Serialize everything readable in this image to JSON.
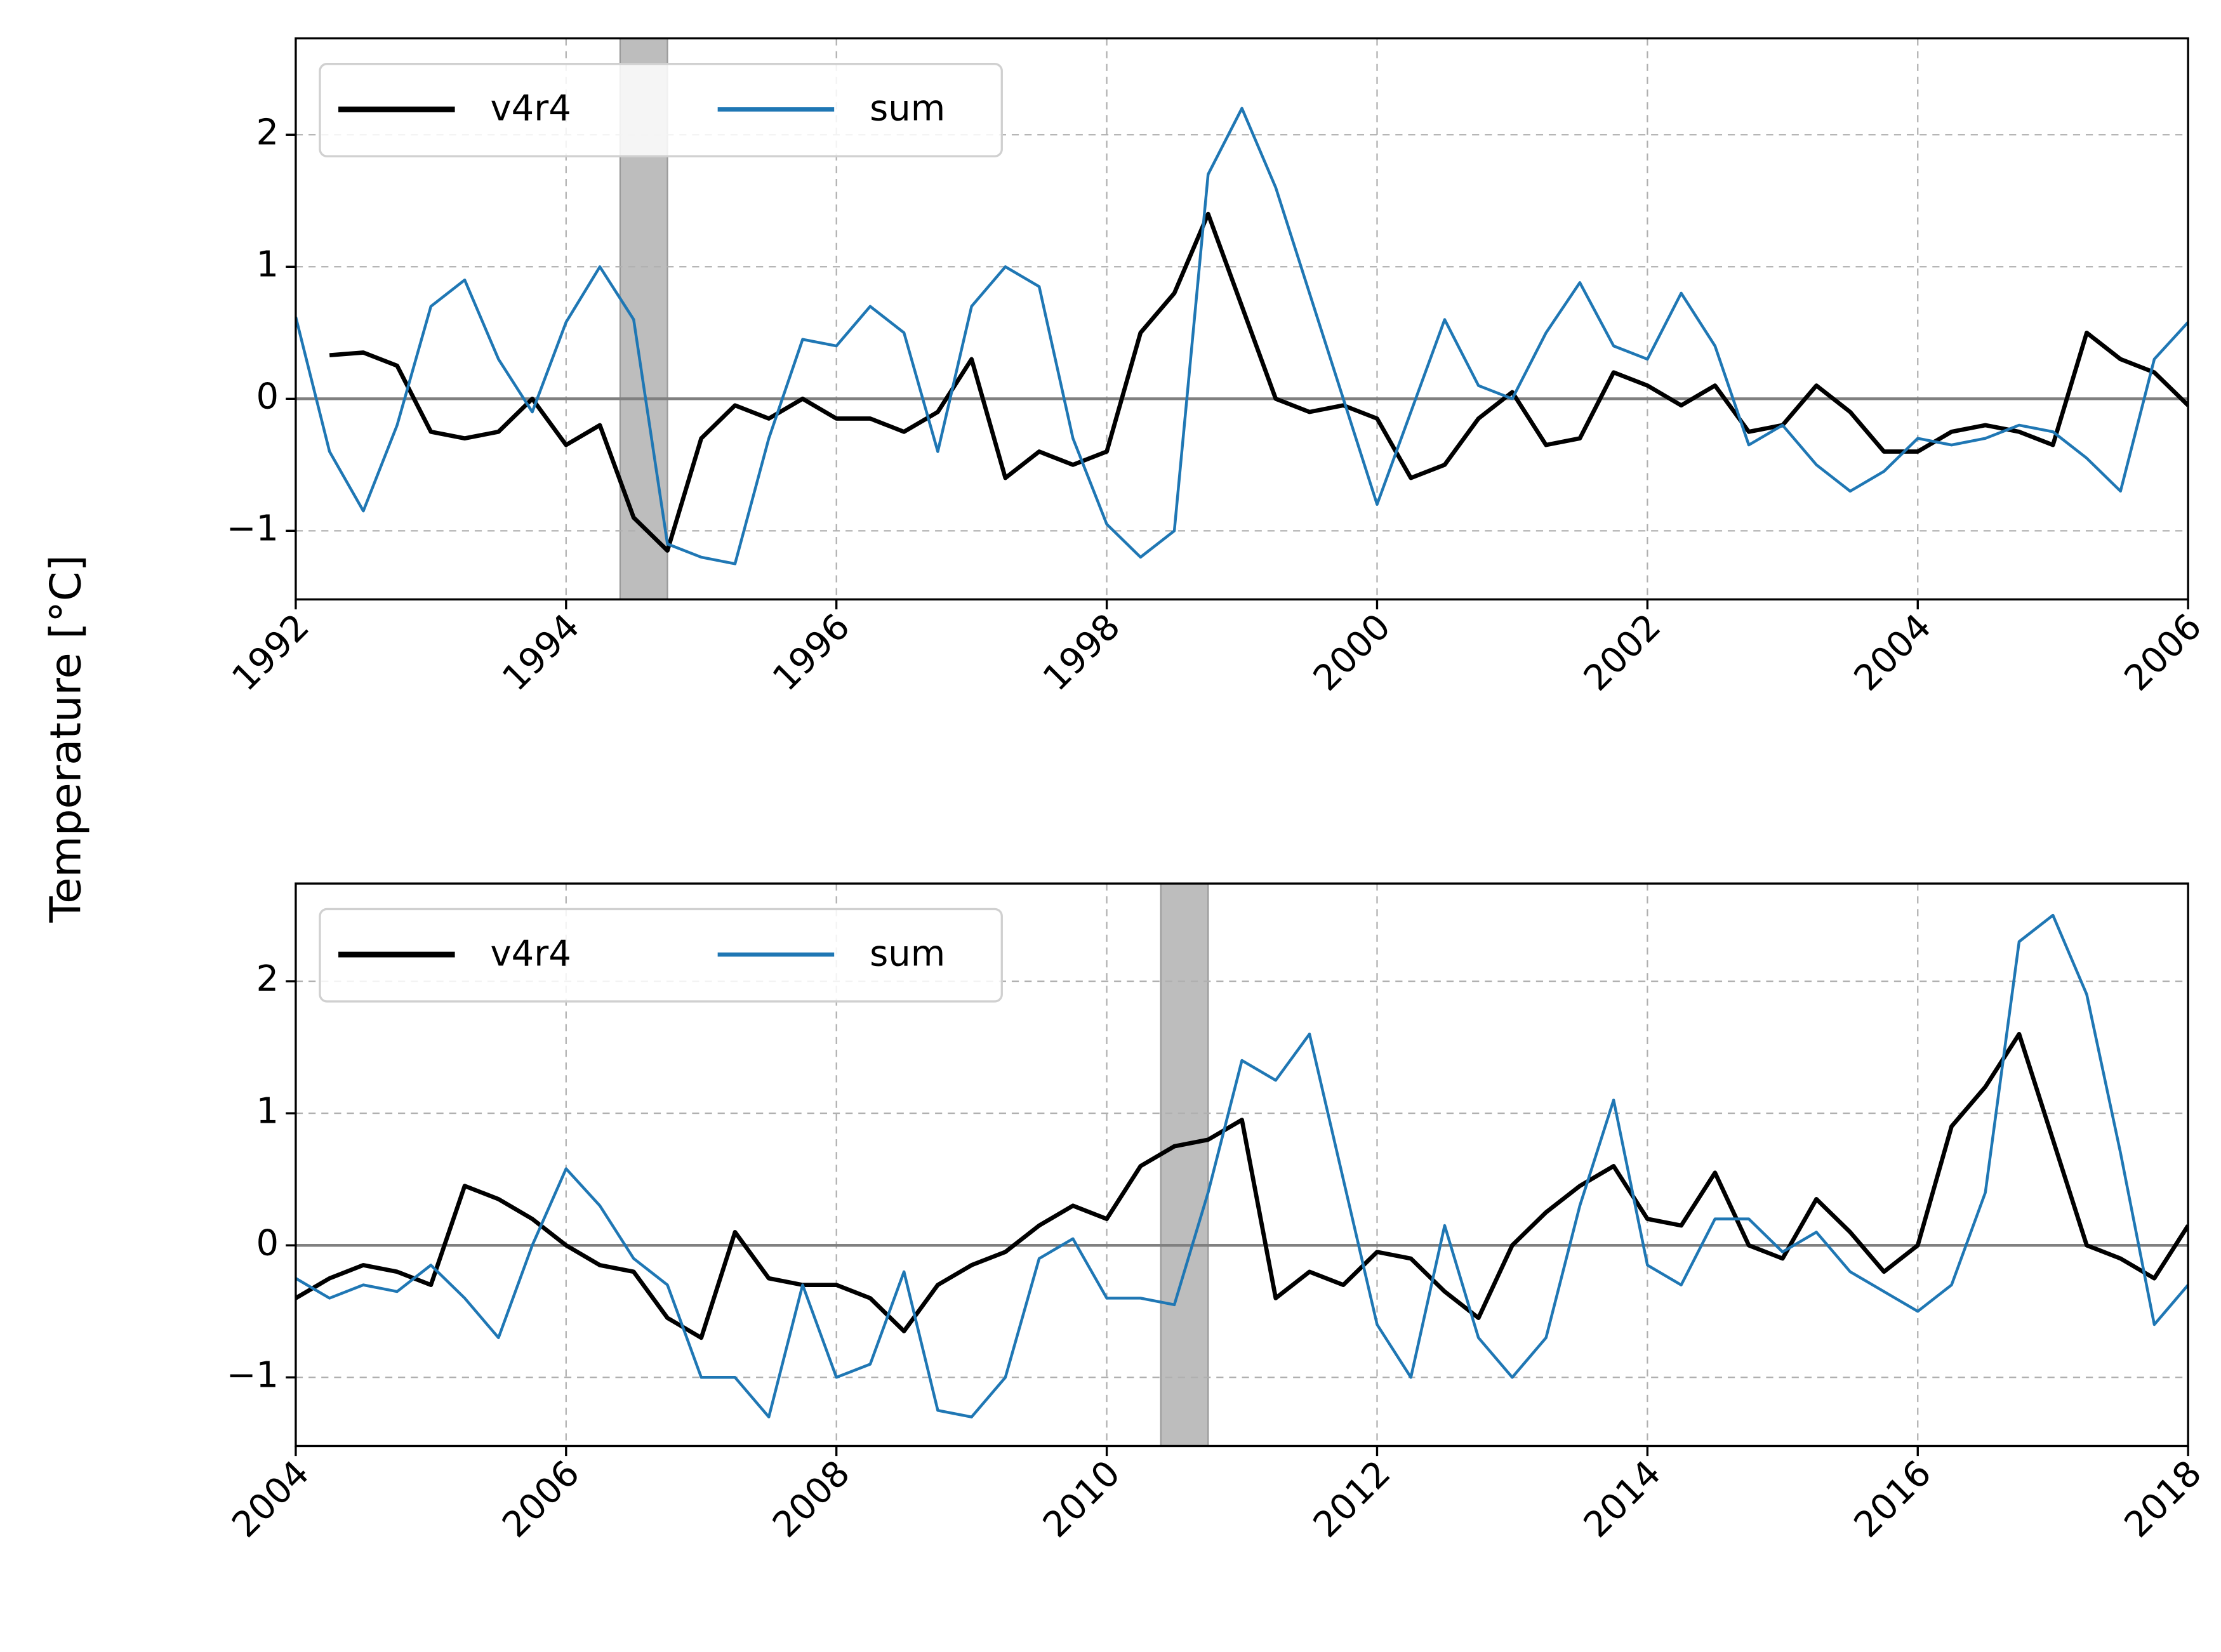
{
  "chart_data": [
    {
      "type": "line",
      "ylabel": "Temperature [°C]",
      "x": [
        1992,
        1992.25,
        1992.5,
        1992.75,
        1993,
        1993.25,
        1993.5,
        1993.75,
        1994,
        1994.25,
        1994.5,
        1994.75,
        1995,
        1995.25,
        1995.5,
        1995.75,
        1996,
        1996.25,
        1996.5,
        1996.75,
        1997,
        1997.25,
        1997.5,
        1997.75,
        1998,
        1998.25,
        1998.5,
        1998.75,
        1999,
        1999.25,
        1999.5,
        1999.75,
        2000,
        2000.25,
        2000.5,
        2000.75,
        2001,
        2001.25,
        2001.5,
        2001.75,
        2002,
        2002.25,
        2002.5,
        2002.75,
        2003,
        2003.25,
        2003.5,
        2003.75,
        2004,
        2004.25,
        2004.5,
        2004.75,
        2005,
        2005.25,
        2005.5,
        2005.75,
        2006
      ],
      "series": [
        {
          "name": "v4r4",
          "color": "#000000",
          "width": 3,
          "values": [
            null,
            0.33,
            0.35,
            0.25,
            -0.25,
            -0.3,
            -0.25,
            0.0,
            -0.35,
            -0.2,
            -0.9,
            -1.15,
            -0.3,
            -0.05,
            -0.15,
            0.0,
            -0.15,
            -0.15,
            -0.25,
            -0.1,
            0.3,
            -0.6,
            -0.4,
            -0.5,
            -0.4,
            0.5,
            0.8,
            1.4,
            0.7,
            0.0,
            -0.1,
            -0.05,
            -0.15,
            -0.6,
            -0.5,
            -0.15,
            0.05,
            -0.35,
            -0.3,
            0.2,
            0.1,
            -0.05,
            0.1,
            -0.25,
            -0.2,
            0.1,
            -0.1,
            -0.4,
            -0.4,
            -0.25,
            -0.2,
            -0.25,
            -0.35,
            0.5,
            0.3,
            0.2,
            -0.05
          ]
        },
        {
          "name": "sum",
          "color": "#1f77b4",
          "width": 2,
          "values": [
            0.62,
            -0.4,
            -0.85,
            -0.2,
            0.7,
            0.9,
            0.3,
            -0.1,
            0.58,
            1.0,
            0.6,
            -1.1,
            -1.2,
            -1.25,
            -0.3,
            0.45,
            0.4,
            0.7,
            0.5,
            -0.4,
            0.7,
            1.0,
            0.85,
            -0.3,
            -0.95,
            -1.2,
            -1.0,
            1.7,
            2.2,
            1.6,
            0.8,
            0.0,
            -0.8,
            -0.1,
            0.6,
            0.1,
            0.0,
            0.5,
            0.88,
            0.4,
            0.3,
            0.8,
            0.4,
            -0.35,
            -0.2,
            -0.5,
            -0.7,
            -0.55,
            -0.3,
            -0.35,
            -0.3,
            -0.2,
            -0.25,
            -0.45,
            -0.7,
            0.3,
            0.58
          ]
        }
      ],
      "spans": [
        [
          1994.4,
          1994.75
        ]
      ],
      "hline": 0,
      "xlim": [
        1992,
        2006
      ],
      "xticks": [
        1992,
        1994,
        1996,
        1998,
        2000,
        2002,
        2004,
        2006
      ],
      "ylim": [
        -1.52,
        2.73
      ],
      "yticks": [
        {
          "value": -1,
          "label": "−1"
        },
        0,
        1,
        2
      ],
      "grid": true,
      "legend": "upper left"
    },
    {
      "type": "line",
      "x": [
        2004,
        2004.25,
        2004.5,
        2004.75,
        2005,
        2005.25,
        2005.5,
        2005.75,
        2006,
        2006.25,
        2006.5,
        2006.75,
        2007,
        2007.25,
        2007.5,
        2007.75,
        2008,
        2008.25,
        2008.5,
        2008.75,
        2009,
        2009.25,
        2009.5,
        2009.75,
        2010,
        2010.25,
        2010.5,
        2010.75,
        2011,
        2011.25,
        2011.5,
        2011.75,
        2012,
        2012.25,
        2012.5,
        2012.75,
        2013,
        2013.25,
        2013.5,
        2013.75,
        2014,
        2014.25,
        2014.5,
        2014.75,
        2015,
        2015.25,
        2015.5,
        2015.75,
        2016,
        2016.25,
        2016.5,
        2016.75,
        2017,
        2017.25,
        2017.5,
        2017.75,
        2018
      ],
      "series": [
        {
          "name": "v4r4",
          "color": "#000000",
          "width": 3,
          "values": [
            -0.4,
            -0.25,
            -0.15,
            -0.2,
            -0.3,
            0.45,
            0.35,
            0.2,
            0.0,
            -0.15,
            -0.2,
            -0.55,
            -0.7,
            0.1,
            -0.25,
            -0.3,
            -0.3,
            -0.4,
            -0.65,
            -0.3,
            -0.15,
            -0.05,
            0.15,
            0.3,
            0.2,
            0.6,
            0.75,
            0.8,
            0.95,
            -0.4,
            -0.2,
            -0.3,
            -0.05,
            -0.1,
            -0.35,
            -0.55,
            0.0,
            0.25,
            0.45,
            0.6,
            0.2,
            0.15,
            0.55,
            0.0,
            -0.1,
            0.35,
            0.1,
            -0.2,
            0.0,
            0.9,
            1.2,
            1.6,
            0.8,
            0.0,
            -0.1,
            -0.25,
            0.15
          ]
        },
        {
          "name": "sum",
          "color": "#1f77b4",
          "width": 2,
          "values": [
            -0.25,
            -0.4,
            -0.3,
            -0.35,
            -0.15,
            -0.4,
            -0.7,
            0.0,
            0.58,
            0.3,
            -0.1,
            -0.3,
            -1.0,
            -1.0,
            -1.3,
            -0.3,
            -1.0,
            -0.9,
            -0.2,
            -1.25,
            -1.3,
            -1.0,
            -0.1,
            0.05,
            -0.4,
            -0.4,
            -0.45,
            0.4,
            1.4,
            1.25,
            1.6,
            0.5,
            -0.6,
            -1.0,
            0.15,
            -0.7,
            -1.0,
            -0.7,
            0.3,
            1.1,
            -0.15,
            -0.3,
            0.2,
            0.2,
            -0.05,
            0.1,
            -0.2,
            -0.35,
            -0.5,
            -0.3,
            0.4,
            2.3,
            2.5,
            1.9,
            0.7,
            -0.6,
            -0.3
          ]
        }
      ],
      "spans": [
        [
          2010.4,
          2010.75
        ]
      ],
      "hline": 0,
      "xlim": [
        2004,
        2018
      ],
      "xticks": [
        2004,
        2006,
        2008,
        2010,
        2012,
        2014,
        2016,
        2018
      ],
      "ylim": [
        -1.52,
        2.74
      ],
      "yticks": [
        {
          "value": -1,
          "label": "−1"
        },
        0,
        1,
        2
      ],
      "grid": true,
      "legend": "upper left"
    }
  ]
}
